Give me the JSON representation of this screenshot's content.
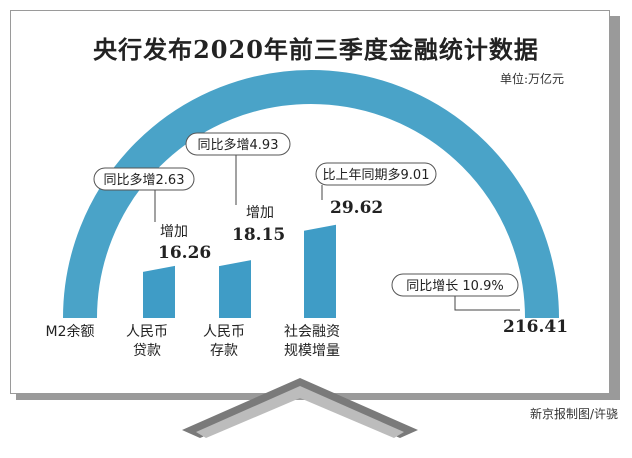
{
  "title": "央行发布2020年前三季度金融统计数据",
  "unit_note": "单位:万亿元",
  "credit": "新京报制图/许骁",
  "colors": {
    "arc": "#4aa3c8",
    "bar": "#3f9cc6",
    "roof": "#7a7a7a",
    "callout_border": "#555555"
  },
  "chart_data": {
    "type": "bar",
    "unit": "万亿元",
    "categories": [
      {
        "line1": "M2余额",
        "line2": ""
      },
      {
        "line1": "人民币",
        "line2": "贷款"
      },
      {
        "line1": "人民币",
        "line2": "存款"
      },
      {
        "line1": "社会融资",
        "line2": "规模增量"
      }
    ],
    "values": [
      216.41,
      16.26,
      18.15,
      29.62
    ],
    "value_labels": [
      "216.41",
      "16.26",
      "18.15",
      "29.62"
    ],
    "value_prefixes": [
      "",
      "增加",
      "增加",
      ""
    ],
    "callouts": [
      "同比增长 10.9%",
      "同比多增2.63",
      "同比多增4.93",
      "比上年同期多9.01"
    ]
  }
}
